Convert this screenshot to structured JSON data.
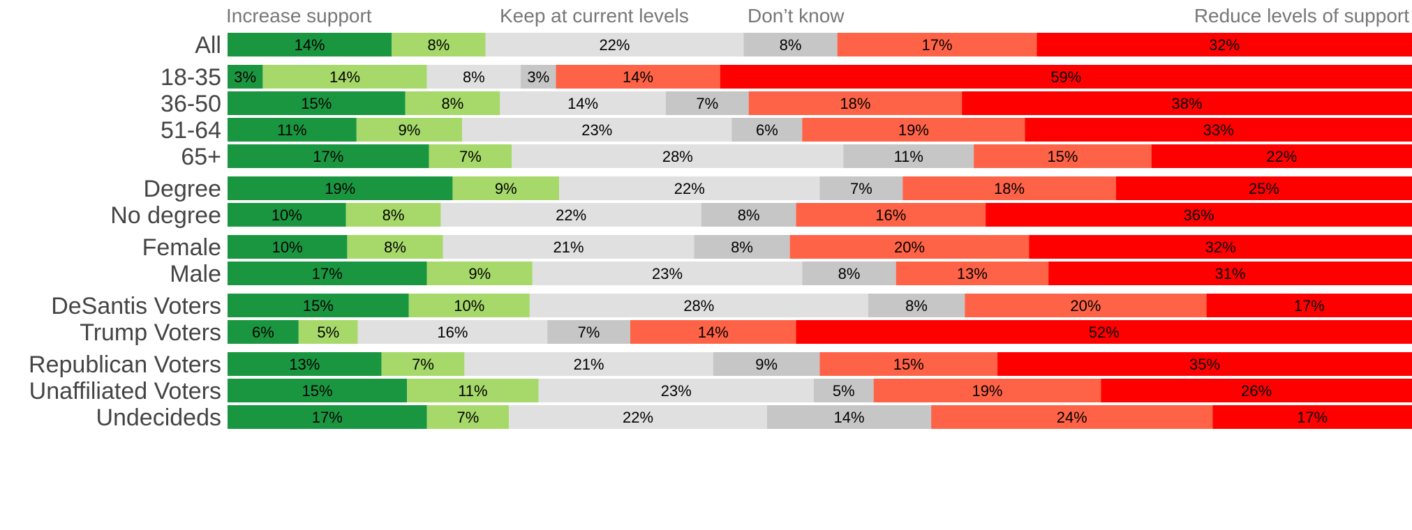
{
  "chart_data": {
    "type": "bar",
    "orientation": "horizontal",
    "stacked": true,
    "normalized": "100%",
    "legend_position": "top",
    "grid": false,
    "legend": [
      {
        "key": "increase_strong",
        "label": "Increase support",
        "color": "#1a9641"
      },
      {
        "key": "increase_some",
        "label": "",
        "color": "#a6d96a"
      },
      {
        "key": "keep",
        "label": "Keep at current levels",
        "color": "#e0e0e0"
      },
      {
        "key": "dont_know",
        "label": "Don’t know",
        "color": "#c6c6c6"
      },
      {
        "key": "reduce_some",
        "label": "",
        "color": "#ff6347"
      },
      {
        "key": "reduce_strong",
        "label": "Reduce levels of support",
        "color": "#ff0000"
      }
    ],
    "groups": [
      {
        "rows": [
          {
            "label": "All",
            "values": [
              14,
              8,
              22,
              8,
              17,
              32
            ]
          }
        ]
      },
      {
        "rows": [
          {
            "label": "18-35",
            "values": [
              3,
              14,
              8,
              3,
              14,
              59
            ]
          },
          {
            "label": "36-50",
            "values": [
              15,
              8,
              14,
              7,
              18,
              38
            ]
          },
          {
            "label": "51-64",
            "values": [
              11,
              9,
              23,
              6,
              19,
              33
            ]
          },
          {
            "label": "65+",
            "values": [
              17,
              7,
              28,
              11,
              15,
              22
            ]
          }
        ]
      },
      {
        "rows": [
          {
            "label": "Degree",
            "values": [
              19,
              9,
              22,
              7,
              18,
              25
            ]
          },
          {
            "label": "No degree",
            "values": [
              10,
              8,
              22,
              8,
              16,
              36
            ]
          }
        ]
      },
      {
        "rows": [
          {
            "label": "Female",
            "values": [
              10,
              8,
              21,
              8,
              20,
              32
            ]
          },
          {
            "label": "Male",
            "values": [
              17,
              9,
              23,
              8,
              13,
              31
            ]
          }
        ]
      },
      {
        "rows": [
          {
            "label": "DeSantis Voters",
            "values": [
              15,
              10,
              28,
              8,
              20,
              17
            ]
          },
          {
            "label": "Trump Voters",
            "values": [
              6,
              5,
              16,
              7,
              14,
              52
            ]
          }
        ]
      },
      {
        "rows": [
          {
            "label": "Republican Voters",
            "values": [
              13,
              7,
              21,
              9,
              15,
              35
            ]
          },
          {
            "label": "Unaffiliated Voters",
            "values": [
              15,
              11,
              23,
              5,
              19,
              26
            ]
          },
          {
            "label": "Undecideds",
            "values": [
              17,
              7,
              22,
              14,
              24,
              17
            ]
          }
        ]
      }
    ],
    "value_suffix": "%"
  }
}
